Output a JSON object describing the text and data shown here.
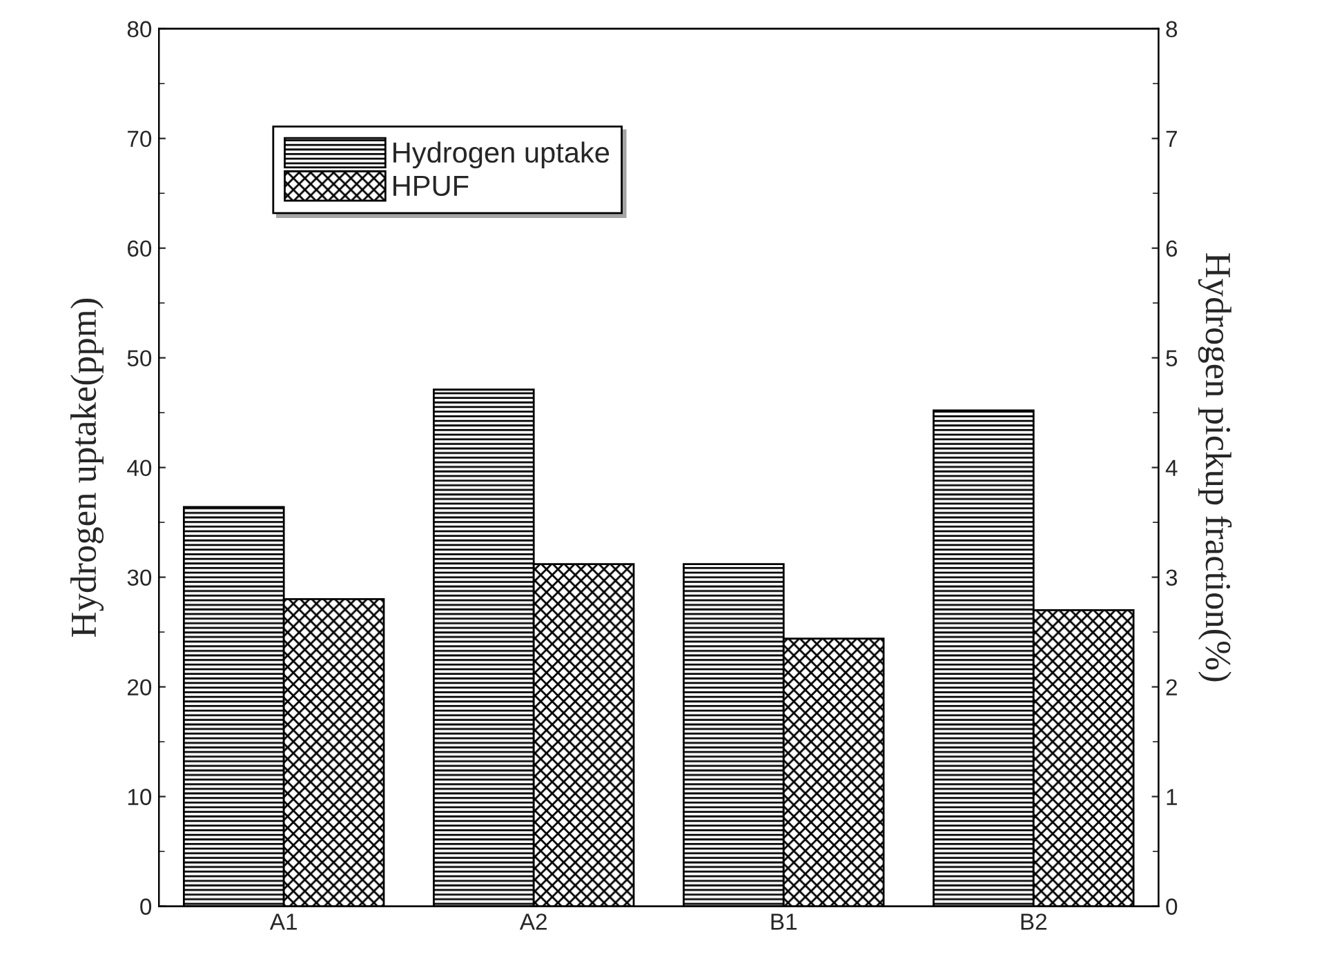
{
  "chart_data": {
    "type": "bar",
    "ylabel": "Hydrogen uptake(ppm)",
    "y2label": "Hydrogen pickup fraction(%)",
    "categories": [
      "A1",
      "A2",
      "B1",
      "B2"
    ],
    "series": [
      {
        "name": "Hydrogen uptake",
        "color": "#000000",
        "values": [
          36.4,
          47.1,
          31.2,
          45.2
        ]
      },
      {
        "name": "HPUF",
        "color": "#000000",
        "axis": "y2",
        "values": [
          2.8,
          3.12,
          2.44,
          2.7
        ]
      }
    ],
    "ylim": [
      0,
      80
    ],
    "yticks": [
      0,
      10,
      20,
      30,
      40,
      50,
      60,
      70,
      80
    ],
    "y2lim": [
      0,
      8
    ],
    "y2ticks": [
      0,
      1,
      2,
      3,
      4,
      5,
      6,
      7,
      8
    ],
    "grid": false,
    "legend": "top left"
  }
}
